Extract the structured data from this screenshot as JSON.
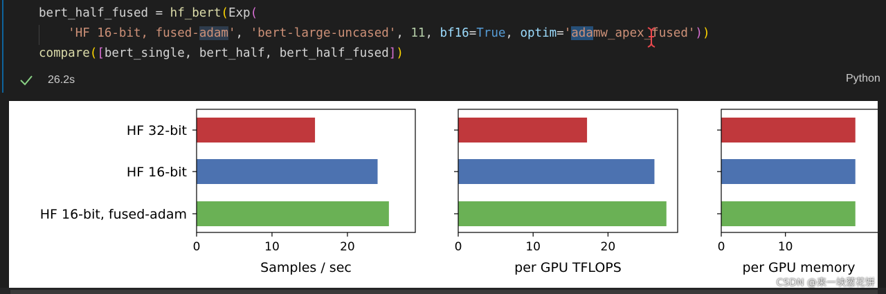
{
  "cell": {
    "code_lines": [
      [
        {
          "t": "bert_half_fused = ",
          "c": ""
        },
        {
          "t": "hf_bert",
          "c": "fn"
        },
        {
          "t": "(",
          "c": "br1"
        },
        {
          "t": "Exp",
          "c": ""
        },
        {
          "t": "(",
          "c": "br2"
        }
      ],
      [
        {
          "t": "    ",
          "c": ""
        },
        {
          "t": "'HF 16-bit, fused-",
          "c": "str"
        },
        {
          "t": "adam",
          "c": "str hl"
        },
        {
          "t": "'",
          "c": "str"
        },
        {
          "t": ", ",
          "c": ""
        },
        {
          "t": "'bert-large-uncased'",
          "c": "str"
        },
        {
          "t": ", ",
          "c": ""
        },
        {
          "t": "11",
          "c": "num"
        },
        {
          "t": ", ",
          "c": ""
        },
        {
          "t": "bf16",
          "c": "param"
        },
        {
          "t": "=",
          "c": ""
        },
        {
          "t": "True",
          "c": "kw"
        },
        {
          "t": ", ",
          "c": ""
        },
        {
          "t": "optim",
          "c": "param"
        },
        {
          "t": "=",
          "c": ""
        },
        {
          "t": "'",
          "c": "str"
        },
        {
          "t": "ada",
          "c": "str sel"
        },
        {
          "t": "m",
          "c": "str"
        },
        {
          "t": "w_apex_fused'",
          "c": "str"
        },
        {
          "t": ")",
          "c": "br2"
        },
        {
          "t": ")",
          "c": "br1"
        }
      ],
      [
        {
          "t": "compare",
          "c": "fn"
        },
        {
          "t": "(",
          "c": "br1"
        },
        {
          "t": "[",
          "c": "br2"
        },
        {
          "t": "bert_single, bert_half, bert_half_fused",
          "c": ""
        },
        {
          "t": "]",
          "c": "br2"
        },
        {
          "t": ")",
          "c": "br1"
        }
      ]
    ],
    "exec_time": "26.2s",
    "language": "Python",
    "colors": {
      "accent": "#0e639c",
      "check": "#89d185"
    }
  },
  "output": {
    "chart_data": [
      {
        "type": "bar",
        "orientation": "horizontal",
        "categories": [
          "HF 32-bit",
          "HF 16-bit",
          "HF 16-bit, fused-adam"
        ],
        "values": [
          15.7,
          24.0,
          25.5
        ],
        "colors": [
          "#c0383c",
          "#4c72b0",
          "#6ab155"
        ],
        "xlabel": "Samples / sec",
        "xlim": [
          0,
          29.0
        ],
        "xticks": [
          0,
          10,
          20
        ],
        "show_category_labels": true
      },
      {
        "type": "bar",
        "orientation": "horizontal",
        "categories": [
          "HF 32-bit",
          "HF 16-bit",
          "HF 16-bit, fused-adam"
        ],
        "values": [
          17.2,
          26.2,
          27.8
        ],
        "colors": [
          "#c0383c",
          "#4c72b0",
          "#6ab155"
        ],
        "xlabel": "per GPU TFLOPS",
        "xlim": [
          0,
          29.3
        ],
        "xticks": [
          0,
          10,
          20
        ],
        "show_category_labels": false
      },
      {
        "type": "bar",
        "orientation": "horizontal",
        "categories": [
          "HF 32-bit",
          "HF 16-bit",
          "HF 16-bit, fused-adam"
        ],
        "values": [
          20.9,
          20.9,
          20.9
        ],
        "colors": [
          "#c0383c",
          "#4c72b0",
          "#6ab155"
        ],
        "xlabel": "per GPU memory",
        "xlim": [
          0,
          26
        ],
        "xticks": [
          0,
          10
        ],
        "show_category_labels": false
      }
    ]
  },
  "watermark": "CSDN @来一块葱花饼"
}
